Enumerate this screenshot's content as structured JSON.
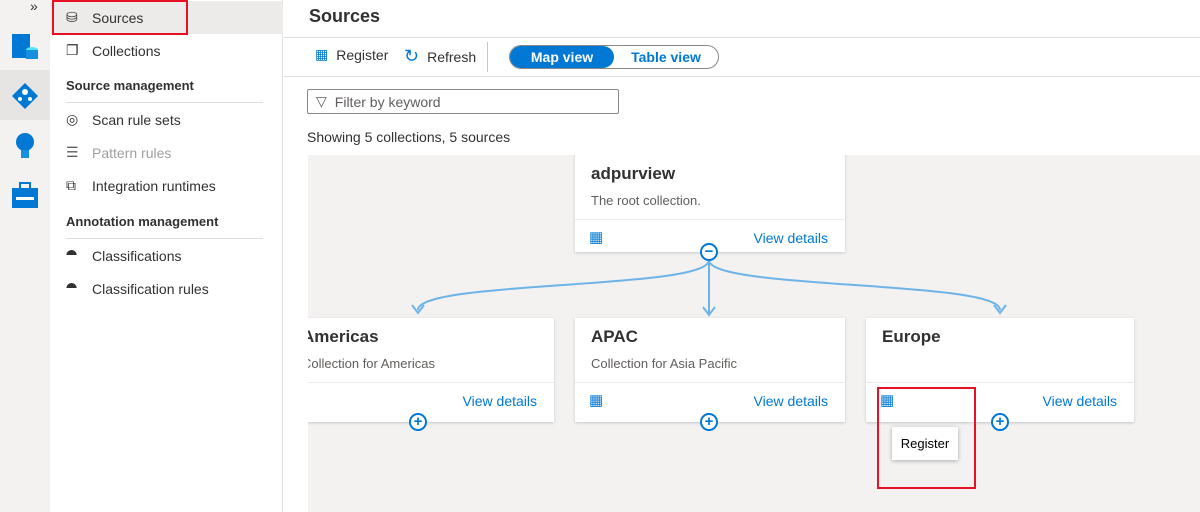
{
  "rail": {
    "expand": "»",
    "icons": [
      "data-map-icon",
      "data-catalog-icon",
      "insights-icon",
      "management-icon"
    ]
  },
  "nav": {
    "items": [
      {
        "label": "Sources",
        "icon": "database-arrow-icon"
      },
      {
        "label": "Collections",
        "icon": "collections-icon"
      }
    ],
    "source_management": {
      "header": "Source management",
      "items": [
        {
          "label": "Scan rule sets"
        },
        {
          "label": "Pattern rules"
        },
        {
          "label": "Integration runtimes"
        }
      ]
    },
    "annotation_management": {
      "header": "Annotation management",
      "items": [
        {
          "label": "Classifications"
        },
        {
          "label": "Classification rules"
        }
      ]
    }
  },
  "main": {
    "title": "Sources",
    "toolbar": {
      "register": "Register",
      "refresh": "Refresh",
      "map_view": "Map view",
      "table_view": "Table view",
      "active_view": "Map view"
    },
    "filter_placeholder": "Filter by keyword",
    "count": "Showing 5 collections, 5 sources"
  },
  "map": {
    "root": {
      "name": "adpurview",
      "description": "The root collection.",
      "view_details": "View details"
    },
    "children": [
      {
        "name": "Americas",
        "description": "Collection for Americas",
        "view_details": "View details"
      },
      {
        "name": "APAC",
        "description": "Collection for Asia Pacific",
        "view_details": "View details"
      },
      {
        "name": "Europe",
        "description": "",
        "view_details": "View details"
      }
    ],
    "tooltip": "Register"
  },
  "colors": {
    "accent": "#0078d4",
    "highlight": "#e81123",
    "connector": "#6cb4e8"
  }
}
